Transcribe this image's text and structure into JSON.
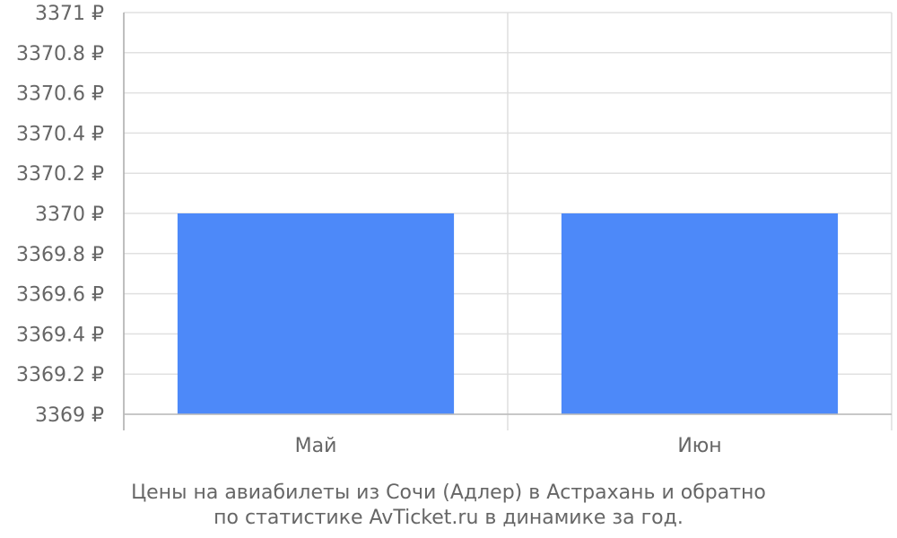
{
  "chart_data": {
    "type": "bar",
    "categories": [
      "Май",
      "Июн"
    ],
    "values": [
      3370,
      3370
    ],
    "ylim": [
      3369,
      3371
    ],
    "yticks": [
      3369,
      3369.2,
      3369.4,
      3369.6,
      3369.8,
      3370,
      3370.2,
      3370.4,
      3370.6,
      3370.8,
      3371
    ],
    "y_tick_labels": [
      "3369 ₽",
      "3369.2 ₽",
      "3369.4 ₽",
      "3369.6 ₽",
      "3369.8 ₽",
      "3370 ₽",
      "3370.2 ₽",
      "3370.4 ₽",
      "3370.6 ₽",
      "3370.8 ₽",
      "3371 ₽"
    ],
    "bar_color": "#4d89f9",
    "grid": true,
    "caption": [
      "Цены на авиабилеты из Сочи (Адлер) в Астрахань и обратно",
      "по статистике AvTicket.ru в динамике за год."
    ]
  }
}
